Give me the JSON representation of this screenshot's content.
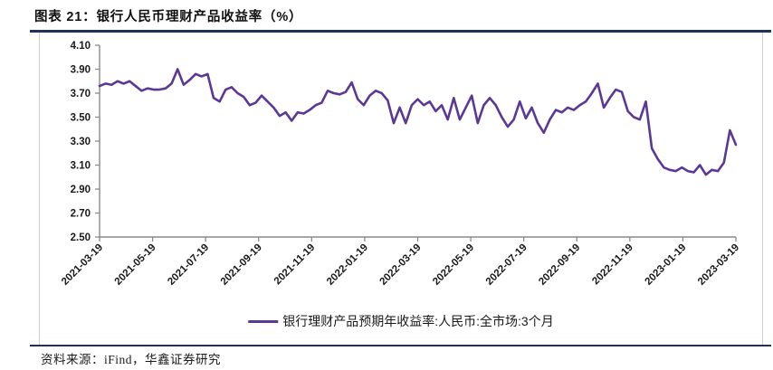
{
  "header": {
    "title": "图表 21：银行人民币理财产品收益率（%）"
  },
  "footer": {
    "source": "资料来源：iFind，华鑫证券研究"
  },
  "colors": {
    "rule_navy": "#1F3358",
    "line_purple": "#5B3896",
    "axis_gray": "#8a8a8a",
    "cell_border": "#cfcfcf"
  },
  "chart_data": {
    "type": "line",
    "title": "银行人民币理财产品收益率（%）",
    "legend": "银行理财产品预期年收益率:人民币:全市场:3个月",
    "legend_position": "bottom-center",
    "grid": false,
    "ylim": [
      2.5,
      4.1
    ],
    "y_tick_step": 0.2,
    "y_tick_labels": [
      "4.10",
      "3.90",
      "3.70",
      "3.50",
      "3.30",
      "3.10",
      "2.90",
      "2.70",
      "2.50"
    ],
    "x_tick_labels": [
      "2021-03-19",
      "2021-05-19",
      "2021-07-19",
      "2021-09-19",
      "2021-11-19",
      "2022-01-19",
      "2022-03-19",
      "2022-05-19",
      "2022-07-19",
      "2022-09-19",
      "2022-11-19",
      "2023-01-19",
      "2023-03-19"
    ],
    "x_start": "2021-03-19",
    "x_end": "2023-03-19",
    "frequency": "weekly",
    "values": [
      3.76,
      3.78,
      3.77,
      3.8,
      3.78,
      3.8,
      3.76,
      3.72,
      3.74,
      3.73,
      3.73,
      3.74,
      3.78,
      3.9,
      3.77,
      3.81,
      3.86,
      3.84,
      3.86,
      3.66,
      3.63,
      3.73,
      3.75,
      3.7,
      3.67,
      3.6,
      3.62,
      3.68,
      3.63,
      3.58,
      3.51,
      3.54,
      3.47,
      3.54,
      3.53,
      3.56,
      3.6,
      3.62,
      3.72,
      3.7,
      3.69,
      3.71,
      3.79,
      3.65,
      3.6,
      3.68,
      3.72,
      3.7,
      3.64,
      3.45,
      3.58,
      3.45,
      3.6,
      3.65,
      3.6,
      3.63,
      3.55,
      3.6,
      3.48,
      3.66,
      3.48,
      3.58,
      3.68,
      3.45,
      3.6,
      3.66,
      3.6,
      3.5,
      3.42,
      3.48,
      3.63,
      3.49,
      3.58,
      3.45,
      3.37,
      3.48,
      3.56,
      3.54,
      3.58,
      3.56,
      3.6,
      3.63,
      3.7,
      3.78,
      3.58,
      3.66,
      3.73,
      3.71,
      3.55,
      3.5,
      3.48,
      3.63,
      3.24,
      3.15,
      3.08,
      3.06,
      3.05,
      3.08,
      3.05,
      3.04,
      3.1,
      3.02,
      3.06,
      3.05,
      3.12,
      3.39,
      3.27
    ]
  }
}
